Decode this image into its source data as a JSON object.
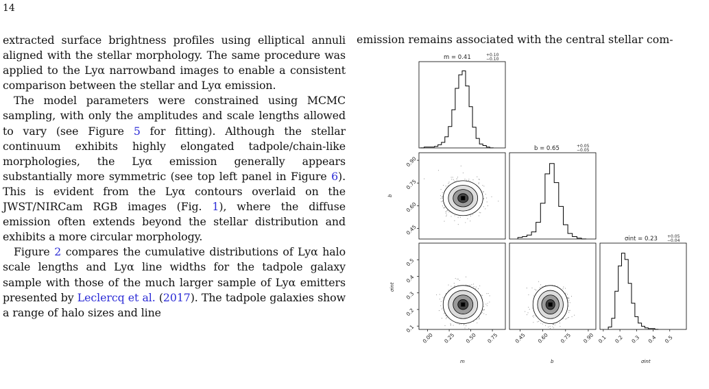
{
  "page": {
    "number": "14"
  },
  "left_column": {
    "paragraph_1": "extracted surface brightness profiles using elliptical annuli aligned with the stellar morphology. The same procedure was applied to the Lyα narrowband images to enable a consistent comparison between the stellar and Lyα emission.",
    "paragraph_2": {
      "part1": "The model parameters were constrained using MCMC sampling, with only the amplitudes and scale lengths allowed to vary (see Figure ",
      "ref1": "5",
      "part2": " for fitting). Although the stellar continuum exhibits highly elongated tadpole/chain-like morphologies, the Lyα emission generally appears substantially more symmetric (see top left panel in Figure ",
      "ref2": "6",
      "part3": "). This is evident from the Lyα contours overlaid on the JWST/NIRCam RGB images (Fig. ",
      "ref3": "1",
      "part4": "), where the diffuse emission often extends beyond the stellar distribution and exhibits a more circular morphology."
    },
    "paragraph_3": {
      "ref1": "2",
      "part1": "Figure ",
      "part2": " compares the cumulative distributions of Lyα halo scale lengths and Lyα line widths for the tadpole galaxy sample with those of the much larger sample of Lyα emitters presented by ",
      "cite_authors": "Leclercq et al.",
      "part3": " (",
      "cite_year": "2017",
      "part4": "). The tadpole galaxies show a range of halo sizes and line"
    }
  },
  "right_column": {
    "text": "emission remains associated with the central stellar com-"
  },
  "chart_data": {
    "type": "corner",
    "parameters": [
      {
        "name": "m",
        "median": 0.41,
        "err_plus": 0.1,
        "err_minus": 0.1,
        "title": "m = 0.41",
        "sup": "+0.10",
        "sub": "−0.10",
        "range": [
          -0.1,
          0.9
        ],
        "ticks": [
          "0.00",
          "0.25",
          "0.50",
          "0.75"
        ],
        "tick_values": [
          0.0,
          0.25,
          0.5,
          0.75
        ]
      },
      {
        "name": "b",
        "median": 0.65,
        "err_plus": 0.05,
        "err_minus": 0.05,
        "title": "b = 0.65",
        "sup": "+0.05",
        "sub": "−0.05",
        "range": [
          0.38,
          0.95
        ],
        "ticks": [
          "0.45",
          "0.60",
          "0.75",
          "0.90"
        ],
        "tick_values": [
          0.45,
          0.6,
          0.75,
          0.9
        ]
      },
      {
        "name": "σint",
        "median": 0.23,
        "err_plus": 0.05,
        "err_minus": 0.04,
        "title": "σint = 0.23",
        "sup": "+0.05",
        "sub": "−0.04",
        "range": [
          0.08,
          0.6
        ],
        "ticks": [
          "0.1",
          "0.2",
          "0.3",
          "0.4",
          "0.5"
        ],
        "tick_values": [
          0.1,
          0.2,
          0.3,
          0.4,
          0.5
        ]
      }
    ],
    "axis_labels": {
      "m": "m",
      "b": "b",
      "sigma": "σint"
    },
    "histograms": {
      "m": [
        [
          -0.06,
          0.001
        ],
        [
          -0.02,
          0.01
        ],
        [
          0.02,
          0.01
        ],
        [
          0.06,
          0.01
        ],
        [
          0.1,
          0.02
        ],
        [
          0.14,
          0.04
        ],
        [
          0.18,
          0.07
        ],
        [
          0.22,
          0.14
        ],
        [
          0.26,
          0.27
        ],
        [
          0.3,
          0.48
        ],
        [
          0.34,
          0.75
        ],
        [
          0.38,
          0.92
        ],
        [
          0.42,
          0.97
        ],
        [
          0.46,
          0.78
        ],
        [
          0.5,
          0.52
        ],
        [
          0.54,
          0.26
        ],
        [
          0.58,
          0.12
        ],
        [
          0.62,
          0.05
        ],
        [
          0.66,
          0.03
        ],
        [
          0.7,
          0.01
        ],
        [
          0.74,
          0.001
        ]
      ],
      "b": [
        [
          0.45,
          0.02
        ],
        [
          0.48,
          0.03
        ],
        [
          0.51,
          0.05
        ],
        [
          0.54,
          0.09
        ],
        [
          0.57,
          0.21
        ],
        [
          0.6,
          0.45
        ],
        [
          0.63,
          0.82
        ],
        [
          0.66,
          0.95
        ],
        [
          0.69,
          0.71
        ],
        [
          0.72,
          0.41
        ],
        [
          0.75,
          0.18
        ],
        [
          0.78,
          0.07
        ],
        [
          0.81,
          0.03
        ],
        [
          0.84,
          0.01
        ],
        [
          0.87,
          0.001
        ]
      ],
      "σint": [
        [
          0.14,
          0.03
        ],
        [
          0.16,
          0.14
        ],
        [
          0.18,
          0.48
        ],
        [
          0.2,
          0.8
        ],
        [
          0.22,
          0.96
        ],
        [
          0.24,
          0.88
        ],
        [
          0.26,
          0.58
        ],
        [
          0.28,
          0.33
        ],
        [
          0.3,
          0.16
        ],
        [
          0.32,
          0.08
        ],
        [
          0.34,
          0.04
        ],
        [
          0.36,
          0.02
        ],
        [
          0.38,
          0.01
        ],
        [
          0.4,
          0.01
        ],
        [
          0.42,
          0.001
        ]
      ]
    }
  }
}
